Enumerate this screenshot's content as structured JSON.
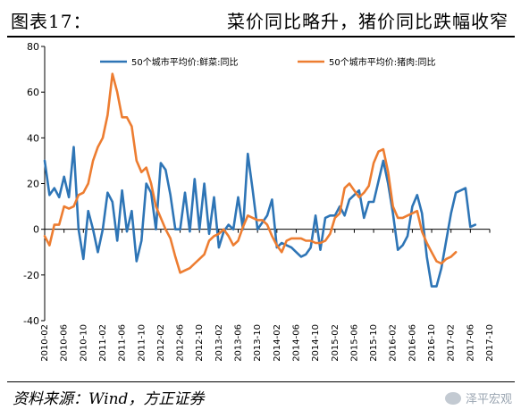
{
  "header": {
    "figure_label": "图表17：",
    "title": "菜价同比略升，猪价同比跌幅收窄"
  },
  "footer": {
    "source": "资料来源：Wind，方正证券",
    "watermark": "泽平宏观"
  },
  "chart_data": {
    "type": "line",
    "title": "菜价同比略升，猪价同比跌幅收窄",
    "ylim": [
      -40,
      80
    ],
    "yticks": [
      -40,
      -20,
      0,
      20,
      40,
      60,
      80
    ],
    "grid": false,
    "legend_position": "top",
    "x_start": "2010-02",
    "x_end": "2017-10",
    "x_tick_labels": [
      "2010-02",
      "2010-06",
      "2010-10",
      "2011-02",
      "2011-06",
      "2011-10",
      "2012-02",
      "2012-06",
      "2012-10",
      "2013-02",
      "2013-06",
      "2013-10",
      "2014-02",
      "2014-06",
      "2014-10",
      "2015-02",
      "2015-06",
      "2015-10",
      "2016-02",
      "2016-06",
      "2016-10",
      "2017-02",
      "2017-06",
      "2017-10"
    ],
    "series": [
      {
        "name": "50个城市平均价:鲜菜:同比",
        "color": "#2E75B6",
        "points": [
          [
            "2010-02",
            30
          ],
          [
            "2010-03",
            15
          ],
          [
            "2010-04",
            18
          ],
          [
            "2010-05",
            14
          ],
          [
            "2010-06",
            23
          ],
          [
            "2010-07",
            14
          ],
          [
            "2010-08",
            36
          ],
          [
            "2010-09",
            0
          ],
          [
            "2010-10",
            -13
          ],
          [
            "2010-11",
            8
          ],
          [
            "2010-12",
            0
          ],
          [
            "2011-01",
            -10
          ],
          [
            "2011-02",
            0
          ],
          [
            "2011-03",
            16
          ],
          [
            "2011-04",
            12
          ],
          [
            "2011-05",
            -5
          ],
          [
            "2011-06",
            17
          ],
          [
            "2011-07",
            -1
          ],
          [
            "2011-08",
            8
          ],
          [
            "2011-09",
            -14
          ],
          [
            "2011-10",
            -5
          ],
          [
            "2011-11",
            20
          ],
          [
            "2011-12",
            16
          ],
          [
            "2012-01",
            0
          ],
          [
            "2012-02",
            29
          ],
          [
            "2012-03",
            26
          ],
          [
            "2012-04",
            15
          ],
          [
            "2012-05",
            0
          ],
          [
            "2012-06",
            0
          ],
          [
            "2012-07",
            16
          ],
          [
            "2012-08",
            -1
          ],
          [
            "2012-09",
            22
          ],
          [
            "2012-10",
            0
          ],
          [
            "2012-11",
            20
          ],
          [
            "2012-12",
            -2
          ],
          [
            "2013-01",
            14
          ],
          [
            "2013-02",
            -8
          ],
          [
            "2013-03",
            -1
          ],
          [
            "2013-04",
            2
          ],
          [
            "2013-05",
            0
          ],
          [
            "2013-06",
            14
          ],
          [
            "2013-07",
            0
          ],
          [
            "2013-08",
            33
          ],
          [
            "2013-09",
            17
          ],
          [
            "2013-10",
            0
          ],
          [
            "2013-11",
            3
          ],
          [
            "2013-12",
            6
          ],
          [
            "2014-01",
            13
          ],
          [
            "2014-02",
            -8
          ],
          [
            "2014-03",
            -6
          ],
          [
            "2014-04",
            -7
          ],
          [
            "2014-05",
            -8
          ],
          [
            "2014-06",
            -10
          ],
          [
            "2014-07",
            -12
          ],
          [
            "2014-08",
            -11
          ],
          [
            "2014-09",
            -8
          ],
          [
            "2014-10",
            6
          ],
          [
            "2014-11",
            -9
          ],
          [
            "2014-12",
            5
          ],
          [
            "2015-01",
            6
          ],
          [
            "2015-02",
            6
          ],
          [
            "2015-03",
            10
          ],
          [
            "2015-04",
            6
          ],
          [
            "2015-05",
            13
          ],
          [
            "2015-06",
            15
          ],
          [
            "2015-07",
            17
          ],
          [
            "2015-08",
            5
          ],
          [
            "2015-09",
            12
          ],
          [
            "2015-10",
            12
          ],
          [
            "2015-11",
            21
          ],
          [
            "2015-12",
            30
          ],
          [
            "2016-01",
            20
          ],
          [
            "2016-02",
            7
          ],
          [
            "2016-03",
            -9
          ],
          [
            "2016-04",
            -7
          ],
          [
            "2016-05",
            -3
          ],
          [
            "2016-06",
            10
          ],
          [
            "2016-07",
            15
          ],
          [
            "2016-08",
            7
          ],
          [
            "2016-09",
            -12
          ],
          [
            "2016-10",
            -25
          ],
          [
            "2016-11",
            -25
          ],
          [
            "2016-12",
            -17
          ],
          [
            "2017-01",
            -5
          ],
          [
            "2017-02",
            7
          ],
          [
            "2017-03",
            16
          ],
          [
            "2017-04",
            17
          ],
          [
            "2017-05",
            18
          ],
          [
            "2017-06",
            1
          ],
          [
            "2017-07",
            2
          ]
        ]
      },
      {
        "name": "50个城市平均价:猪肉:同比",
        "color": "#ED7D31",
        "points": [
          [
            "2010-02",
            -3
          ],
          [
            "2010-03",
            -7
          ],
          [
            "2010-04",
            2
          ],
          [
            "2010-05",
            2
          ],
          [
            "2010-06",
            10
          ],
          [
            "2010-07",
            9
          ],
          [
            "2010-08",
            10
          ],
          [
            "2010-09",
            15
          ],
          [
            "2010-10",
            16
          ],
          [
            "2010-11",
            20
          ],
          [
            "2010-12",
            30
          ],
          [
            "2011-01",
            36
          ],
          [
            "2011-02",
            40
          ],
          [
            "2011-03",
            50
          ],
          [
            "2011-04",
            68
          ],
          [
            "2011-05",
            60
          ],
          [
            "2011-06",
            49
          ],
          [
            "2011-07",
            49
          ],
          [
            "2011-08",
            45
          ],
          [
            "2011-09",
            30
          ],
          [
            "2011-10",
            25
          ],
          [
            "2011-11",
            27
          ],
          [
            "2011-12",
            20
          ],
          [
            "2012-01",
            10
          ],
          [
            "2012-02",
            5
          ],
          [
            "2012-03",
            0
          ],
          [
            "2012-04",
            -4
          ],
          [
            "2012-05",
            -12
          ],
          [
            "2012-06",
            -19
          ],
          [
            "2012-07",
            -18
          ],
          [
            "2012-08",
            -17
          ],
          [
            "2012-09",
            -15
          ],
          [
            "2012-10",
            -13
          ],
          [
            "2012-11",
            -11
          ],
          [
            "2012-12",
            -5
          ],
          [
            "2013-01",
            -3
          ],
          [
            "2013-02",
            -2
          ],
          [
            "2013-03",
            0
          ],
          [
            "2013-04",
            -3
          ],
          [
            "2013-05",
            -7
          ],
          [
            "2013-06",
            -5
          ],
          [
            "2013-07",
            1
          ],
          [
            "2013-08",
            6
          ],
          [
            "2013-09",
            5
          ],
          [
            "2013-10",
            4
          ],
          [
            "2013-11",
            4
          ],
          [
            "2013-12",
            2
          ],
          [
            "2014-01",
            -3
          ],
          [
            "2014-02",
            -7
          ],
          [
            "2014-03",
            -10
          ],
          [
            "2014-04",
            -5
          ],
          [
            "2014-05",
            -4
          ],
          [
            "2014-06",
            -4
          ],
          [
            "2014-07",
            -4
          ],
          [
            "2014-08",
            -5
          ],
          [
            "2014-09",
            -5
          ],
          [
            "2014-10",
            -6
          ],
          [
            "2014-11",
            -6
          ],
          [
            "2014-12",
            -5
          ],
          [
            "2015-01",
            -2
          ],
          [
            "2015-02",
            5
          ],
          [
            "2015-03",
            7
          ],
          [
            "2015-04",
            18
          ],
          [
            "2015-05",
            20
          ],
          [
            "2015-06",
            17
          ],
          [
            "2015-07",
            14
          ],
          [
            "2015-08",
            16
          ],
          [
            "2015-09",
            19
          ],
          [
            "2015-10",
            29
          ],
          [
            "2015-11",
            34
          ],
          [
            "2015-12",
            35
          ],
          [
            "2016-01",
            25
          ],
          [
            "2016-02",
            10
          ],
          [
            "2016-03",
            5
          ],
          [
            "2016-04",
            5
          ],
          [
            "2016-05",
            6
          ],
          [
            "2016-06",
            7
          ],
          [
            "2016-07",
            8
          ],
          [
            "2016-08",
            -1
          ],
          [
            "2016-09",
            -6
          ],
          [
            "2016-10",
            -10
          ],
          [
            "2016-11",
            -14
          ],
          [
            "2016-12",
            -15
          ],
          [
            "2017-01",
            -13
          ],
          [
            "2017-02",
            -12
          ],
          [
            "2017-03",
            -10
          ]
        ]
      }
    ]
  }
}
